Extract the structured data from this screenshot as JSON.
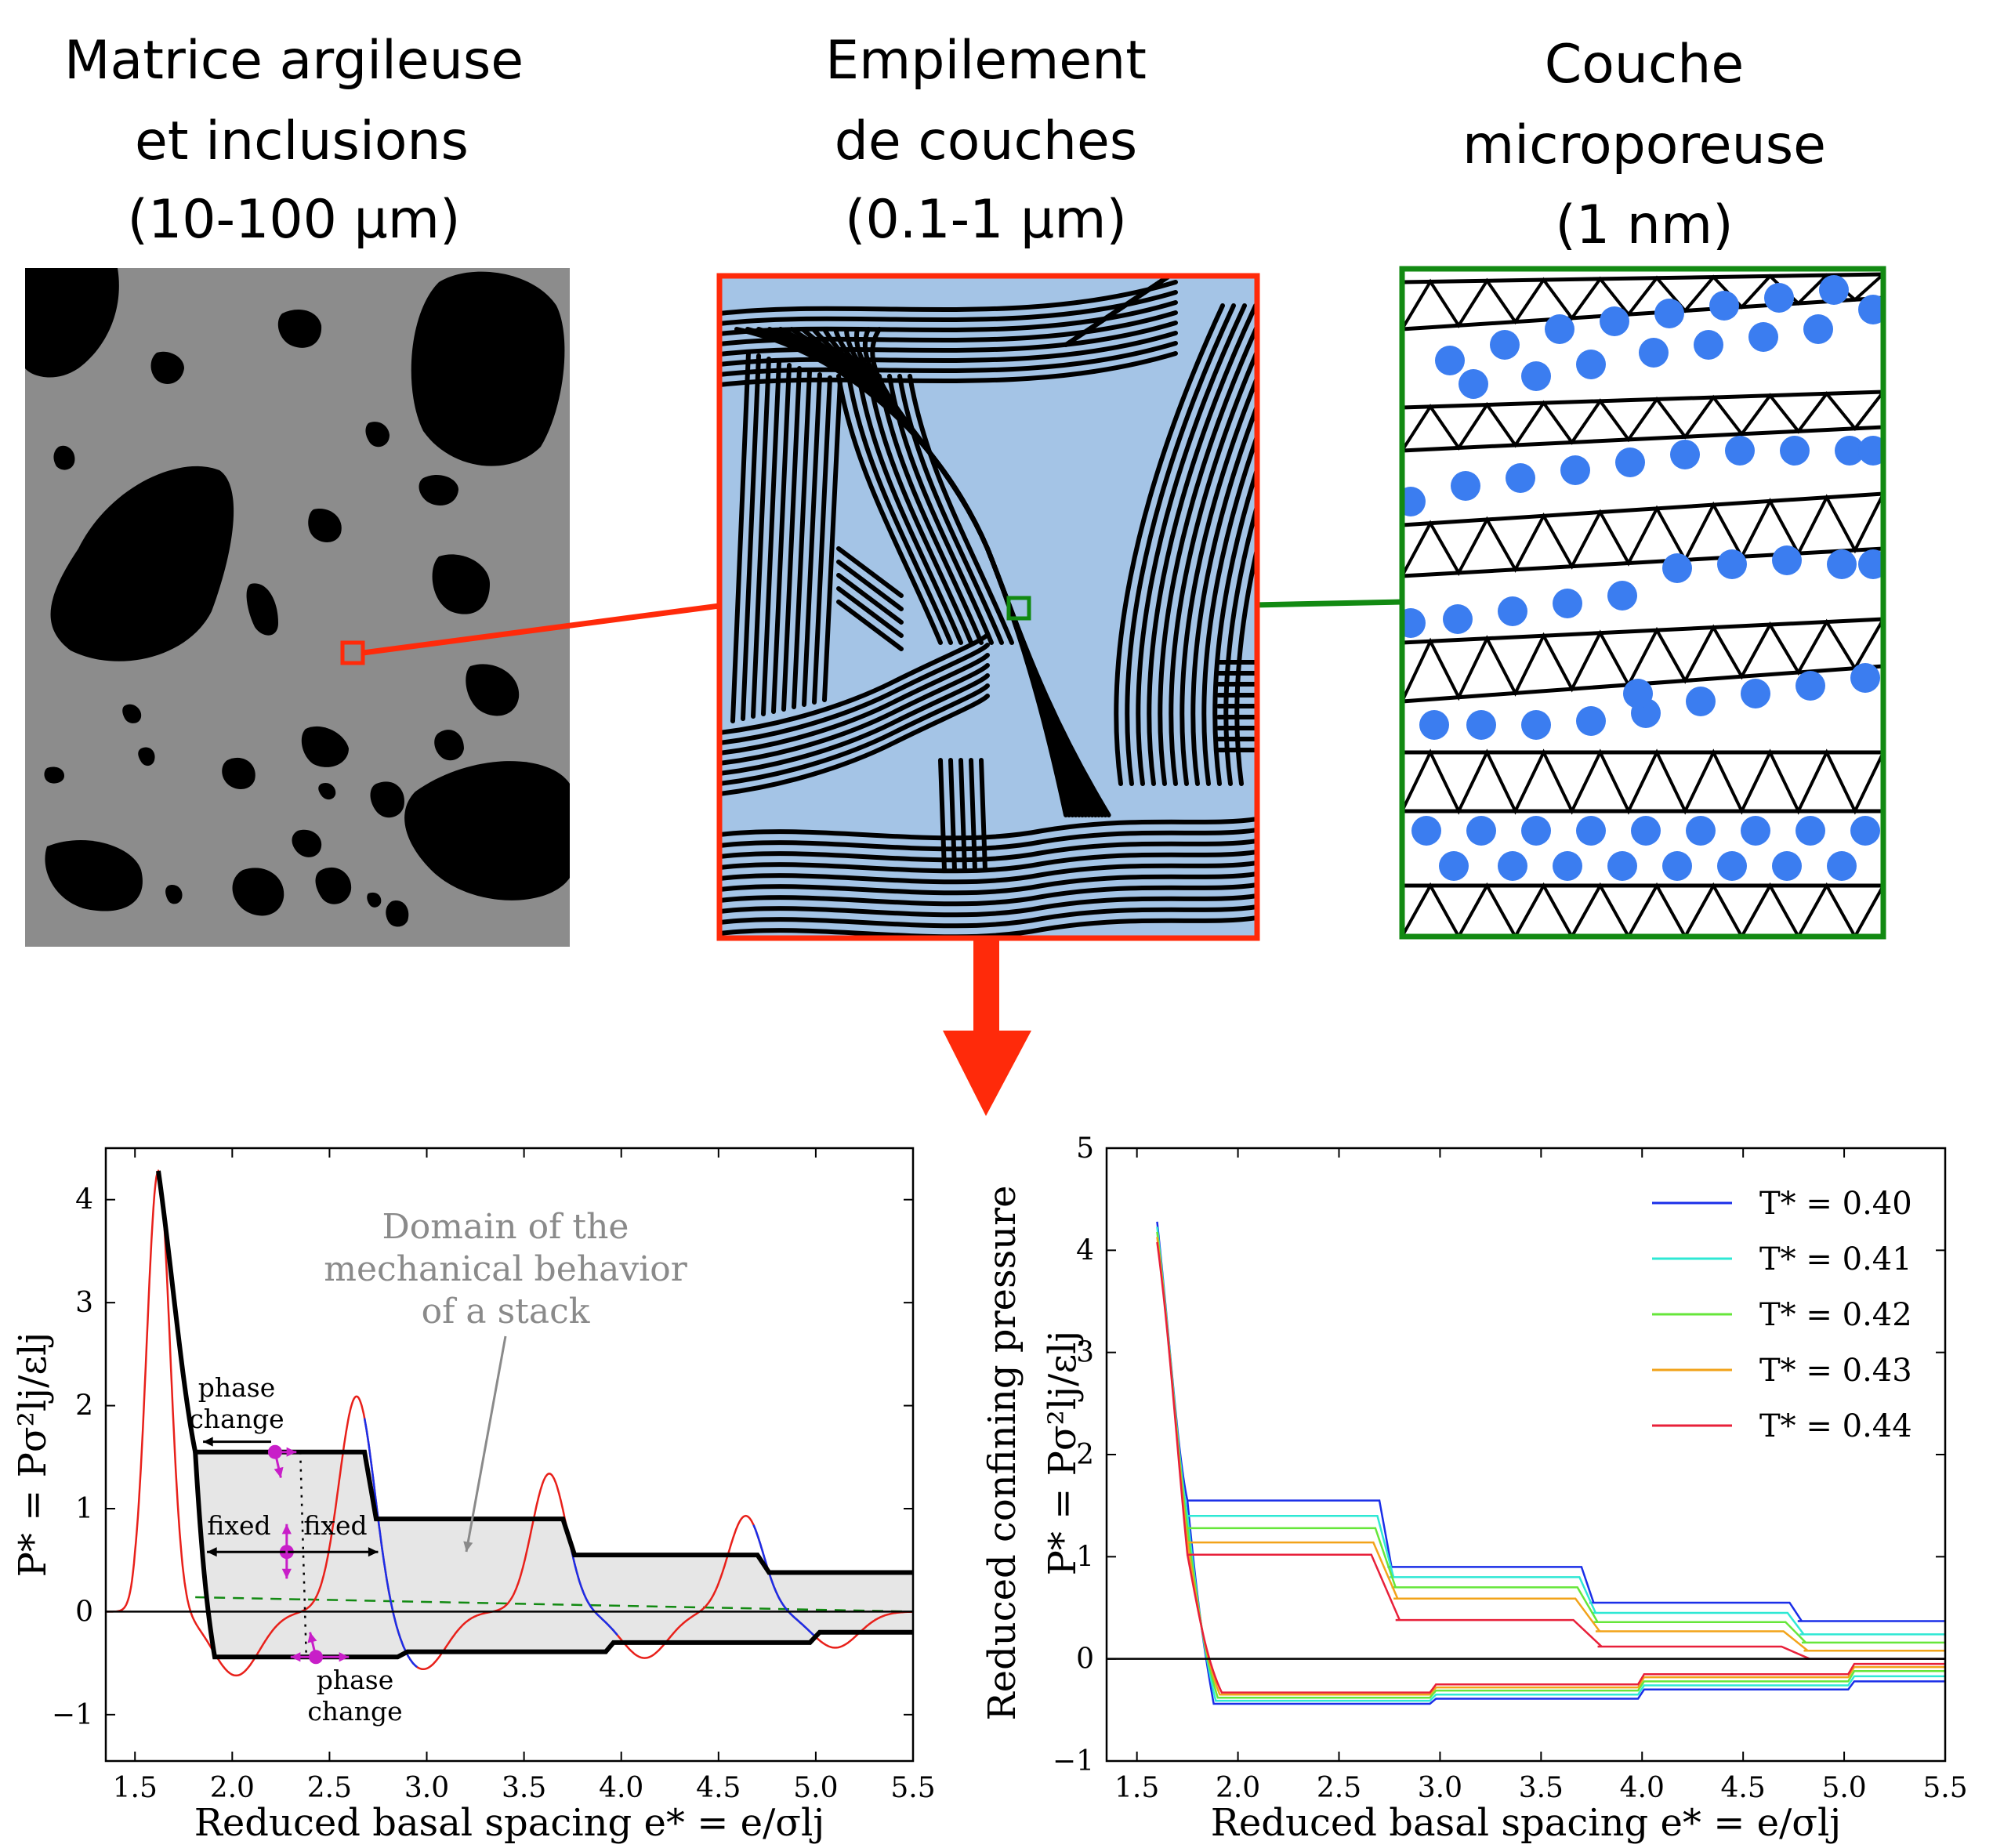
{
  "panels": {
    "matrix": {
      "title_lines": [
        "Matrice argileuse",
        "et inclusions",
        "(10-100 μm)"
      ]
    },
    "stack": {
      "title_lines": [
        "Empilement",
        "de couches",
        "(0.1-1 μm)"
      ]
    },
    "layer": {
      "title_lines": [
        "Couche",
        "microporeuse",
        "(1 nm)"
      ]
    }
  },
  "colors": {
    "matrix_bg": "#8c8c8c",
    "inclusion": "#000000",
    "stack_bg": "#a4c4e6",
    "stack_border": "#ff2a0a",
    "layer_border": "#128a12",
    "water": "#3b7df0",
    "arrow": "#ff2a0a"
  },
  "chart_data": [
    {
      "type": "line",
      "xlabel": "Reduced basal spacing e* = e/σlj",
      "ylabel": "P* = Pσ²lj/εlj",
      "xlim": [
        1.35,
        5.5
      ],
      "ylim": [
        -1.45,
        4.5
      ],
      "xticks": [
        "1.5",
        "2.0",
        "2.5",
        "3.0",
        "3.5",
        "4.0",
        "4.5",
        "5.0",
        "5.5"
      ],
      "yticks": [
        "−1",
        "0",
        "1",
        "2",
        "3",
        "4"
      ],
      "stack_domain_upper": [
        [
          1.81,
          1.55
        ],
        [
          2.68,
          1.55
        ],
        [
          2.74,
          0.9
        ],
        [
          3.7,
          0.9
        ],
        [
          3.76,
          0.55
        ],
        [
          4.7,
          0.55
        ],
        [
          4.76,
          0.38
        ],
        [
          5.5,
          0.38
        ]
      ],
      "stack_domain_lower": [
        [
          1.91,
          -0.44
        ],
        [
          2.85,
          -0.44
        ],
        [
          2.9,
          -0.39
        ],
        [
          3.92,
          -0.39
        ],
        [
          3.96,
          -0.3
        ],
        [
          4.97,
          -0.3
        ],
        [
          5.02,
          -0.2
        ],
        [
          5.5,
          -0.2
        ]
      ],
      "peaks_x": [
        1.62,
        2.64,
        3.63,
        4.64
      ],
      "peaks_y": [
        4.28,
        2.1,
        1.34,
        0.93
      ],
      "dashed_level": 0.14,
      "annotations": {
        "domain_label": [
          "Domain of the",
          "mechanical behavior",
          "of a stack"
        ],
        "phase_change_top": [
          "phase",
          "change"
        ],
        "phase_change_bottom": [
          "phase",
          "change"
        ],
        "fixed_left": "fixed",
        "fixed_right": "fixed"
      }
    },
    {
      "type": "line",
      "xlabel": "Reduced basal spacing e* = e/σlj",
      "ylabel_lines": [
        "Reduced confining pressure",
        "P* = Pσ²lj/εlj"
      ],
      "xlim": [
        1.35,
        5.5
      ],
      "ylim": [
        -1,
        5
      ],
      "xticks": [
        "1.5",
        "2.0",
        "2.5",
        "3.0",
        "3.5",
        "4.0",
        "4.5",
        "5.0",
        "5.5"
      ],
      "yticks": [
        "−1",
        "0",
        "1",
        "2",
        "3",
        "4",
        "5"
      ],
      "legend_position": "top-right",
      "series": [
        {
          "name": "T* = 0.40",
          "color": "#1a2ee8",
          "upper": [
            1.55,
            0.9,
            0.55,
            0.37
          ],
          "lower": [
            -0.44,
            -0.39,
            -0.3,
            -0.22
          ]
        },
        {
          "name": "T* = 0.41",
          "color": "#2ee8d4",
          "upper": [
            1.4,
            0.8,
            0.45,
            0.24
          ],
          "lower": [
            -0.41,
            -0.35,
            -0.26,
            -0.17
          ]
        },
        {
          "name": "T* = 0.42",
          "color": "#66e63a",
          "upper": [
            1.28,
            0.7,
            0.36,
            0.16
          ],
          "lower": [
            -0.38,
            -0.31,
            -0.22,
            -0.12
          ]
        },
        {
          "name": "T* = 0.43",
          "color": "#f2a31a",
          "upper": [
            1.14,
            0.59,
            0.27,
            0.08
          ],
          "lower": [
            -0.35,
            -0.28,
            -0.18,
            -0.08
          ]
        },
        {
          "name": "T* = 0.44",
          "color": "#e8203a",
          "upper": [
            1.02,
            0.38,
            0.12,
            0.0
          ],
          "lower": [
            -0.33,
            -0.25,
            -0.15,
            -0.05
          ]
        }
      ]
    }
  ]
}
